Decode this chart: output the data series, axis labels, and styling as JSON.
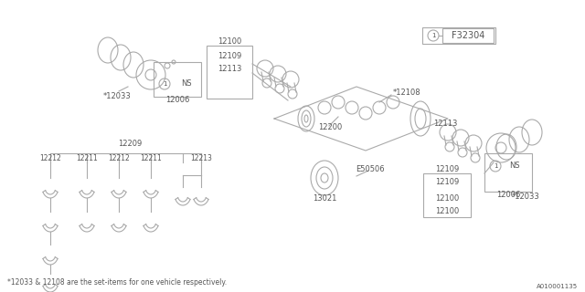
{
  "bg_color": "#ffffff",
  "line_color": "#aaaaaa",
  "text_color": "#555555",
  "fig_width": 6.4,
  "fig_height": 3.2,
  "dpi": 100,
  "part_number_box": "F32304",
  "footnote": "*12033 & 12108 are the set-items for one vehicle respectively.",
  "diagram_id": "A010001135"
}
